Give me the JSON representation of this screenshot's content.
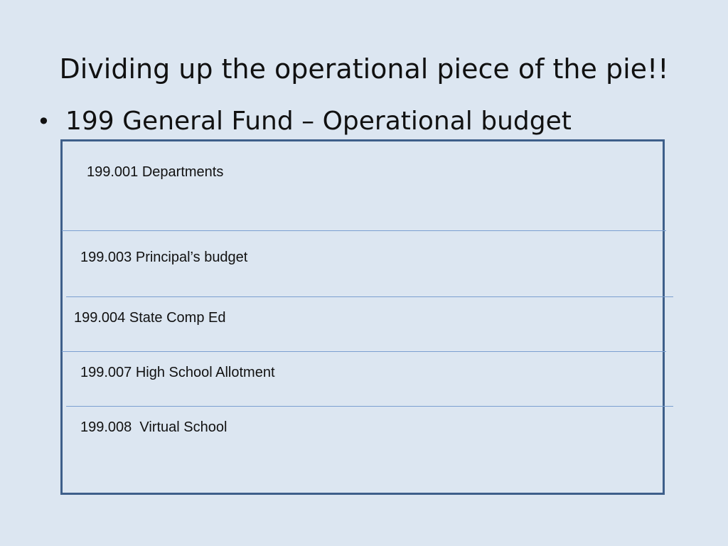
{
  "slide": {
    "title": "Dividing up the operational piece of the pie!!",
    "bullet": {
      "marker": "•",
      "text": "199 General Fund – Operational budget"
    }
  },
  "budget_box": {
    "rows": [
      {
        "label": "199.001 Departments"
      },
      {
        "label": "199.003 Principal’s budget"
      },
      {
        "label": "199.004 State Comp Ed"
      },
      {
        "label": "199.007 High School Allotment"
      },
      {
        "label": "199.008  Virtual School"
      }
    ]
  }
}
